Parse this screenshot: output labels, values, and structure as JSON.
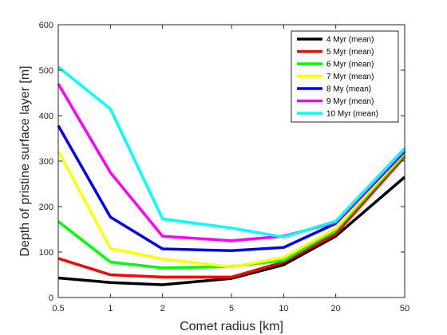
{
  "chart_data": {
    "type": "line",
    "xlabel": "Comet radius [km]",
    "ylabel": "Depth of pristine surface layer [m]",
    "x_scale": "log",
    "xlim": [
      0.5,
      50
    ],
    "ylim": [
      0,
      600
    ],
    "x": [
      0.5,
      1,
      2,
      5,
      10,
      20,
      50
    ],
    "x_ticks": [
      0.5,
      1,
      2,
      5,
      10,
      20,
      50
    ],
    "x_tick_labels": [
      "0.5",
      "1",
      "2",
      "5",
      "10",
      "20",
      "50"
    ],
    "y_ticks": [
      0,
      100,
      200,
      300,
      400,
      500,
      600
    ],
    "y_tick_labels": [
      "0",
      "100",
      "200",
      "300",
      "400",
      "500",
      "600"
    ],
    "grid": false,
    "legend_position": "top-right",
    "series": [
      {
        "name": "4 Myr (mean)",
        "color": "#000000",
        "values": [
          43,
          33,
          28,
          42,
          72,
          135,
          265
        ]
      },
      {
        "name": "5 Myr (mean)",
        "color": "#ff0000",
        "values": [
          86,
          50,
          45,
          45,
          78,
          140,
          310
        ]
      },
      {
        "name": "6 Myr (mean)",
        "color": "#00ff00",
        "values": [
          167,
          78,
          65,
          68,
          82,
          148,
          315
        ]
      },
      {
        "name": "7 Myr (mean)",
        "color": "#ffff00",
        "values": [
          322,
          108,
          85,
          67,
          88,
          152,
          320
        ]
      },
      {
        "name": "8 My (mean)",
        "color": "#0000ff",
        "values": [
          378,
          177,
          107,
          103,
          110,
          163,
          322
        ]
      },
      {
        "name": "9 Myr (mean)",
        "color": "#ff00ff",
        "values": [
          470,
          275,
          135,
          125,
          135,
          165,
          325
        ]
      },
      {
        "name": "10 Myr (mean)",
        "color": "#00ffff",
        "values": [
          507,
          415,
          173,
          153,
          133,
          168,
          328
        ]
      }
    ]
  }
}
